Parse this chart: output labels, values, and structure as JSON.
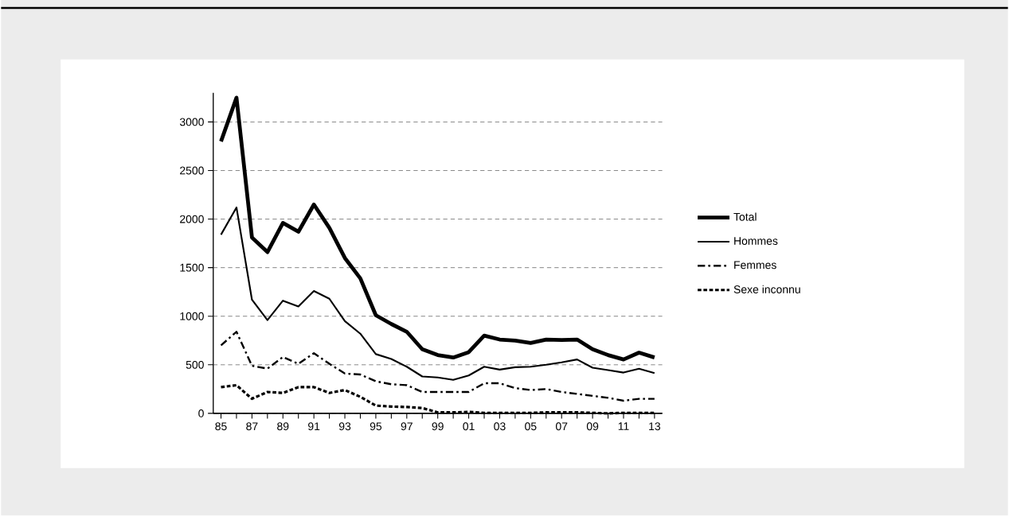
{
  "chart_data": {
    "type": "line",
    "x": [
      1985,
      1986,
      1987,
      1988,
      1989,
      1990,
      1991,
      1992,
      1993,
      1994,
      1995,
      1996,
      1997,
      1998,
      1999,
      2000,
      2001,
      2002,
      2003,
      2004,
      2005,
      2006,
      2007,
      2008,
      2009,
      2010,
      2011,
      2012,
      2013
    ],
    "series": [
      {
        "name": "Total",
        "color": "#000000",
        "line_style": "solid",
        "values": [
          2800,
          3250,
          1810,
          1660,
          1960,
          1870,
          2150,
          1910,
          1600,
          1390,
          1010,
          920,
          840,
          660,
          600,
          575,
          630,
          800,
          760,
          750,
          725,
          760,
          755,
          760,
          660,
          600,
          555,
          625,
          575
        ]
      },
      {
        "name": "Hommes",
        "color": "#000000",
        "line_style": "solid",
        "values": [
          1840,
          2120,
          1170,
          960,
          1160,
          1100,
          1260,
          1180,
          950,
          820,
          610,
          560,
          480,
          380,
          370,
          345,
          390,
          480,
          450,
          475,
          480,
          500,
          525,
          555,
          470,
          445,
          420,
          460,
          415
        ]
      },
      {
        "name": "Femmes",
        "color": "#000000",
        "line_style": "dashed",
        "values": [
          700,
          840,
          490,
          460,
          580,
          510,
          620,
          510,
          410,
          400,
          330,
          300,
          290,
          220,
          220,
          220,
          220,
          310,
          310,
          260,
          240,
          250,
          220,
          200,
          180,
          160,
          130,
          150,
          150
        ]
      },
      {
        "name": "Sexe inconnu",
        "color": "#000000",
        "line_style": "dotted",
        "values": [
          270,
          290,
          150,
          220,
          210,
          270,
          270,
          210,
          240,
          170,
          80,
          70,
          65,
          55,
          10,
          10,
          15,
          5,
          5,
          5,
          5,
          10,
          10,
          10,
          5,
          0,
          5,
          5,
          5
        ]
      }
    ],
    "xlim": [
      1984.5,
      2013.5
    ],
    "xticks": [
      {
        "value": 1985,
        "label": "85"
      },
      {
        "value": 1986,
        "label": null
      },
      {
        "value": 1987,
        "label": "87"
      },
      {
        "value": 1988,
        "label": null
      },
      {
        "value": 1989,
        "label": "89"
      },
      {
        "value": 1990,
        "label": null
      },
      {
        "value": 1991,
        "label": "91"
      },
      {
        "value": 1992,
        "label": null
      },
      {
        "value": 1993,
        "label": "93"
      },
      {
        "value": 1994,
        "label": null
      },
      {
        "value": 1995,
        "label": "95"
      },
      {
        "value": 1996,
        "label": null
      },
      {
        "value": 1997,
        "label": "97"
      },
      {
        "value": 1998,
        "label": null
      },
      {
        "value": 1999,
        "label": "99"
      },
      {
        "value": 2000,
        "label": null
      },
      {
        "value": 2001,
        "label": "01"
      },
      {
        "value": 2002,
        "label": null
      },
      {
        "value": 2003,
        "label": "03"
      },
      {
        "value": 2004,
        "label": null
      },
      {
        "value": 2005,
        "label": "05"
      },
      {
        "value": 2006,
        "label": null
      },
      {
        "value": 2007,
        "label": "07"
      },
      {
        "value": 2008,
        "label": null
      },
      {
        "value": 2009,
        "label": "09"
      },
      {
        "value": 2010,
        "label": null
      },
      {
        "value": 2011,
        "label": "11"
      },
      {
        "value": 2012,
        "label": null
      },
      {
        "value": 2013,
        "label": "13"
      }
    ],
    "ylim": [
      0,
      3300
    ],
    "yticks": [
      0,
      500,
      1000,
      1500,
      2000,
      2500,
      3000
    ],
    "grid": "y",
    "legend": "right",
    "marker": "none"
  }
}
